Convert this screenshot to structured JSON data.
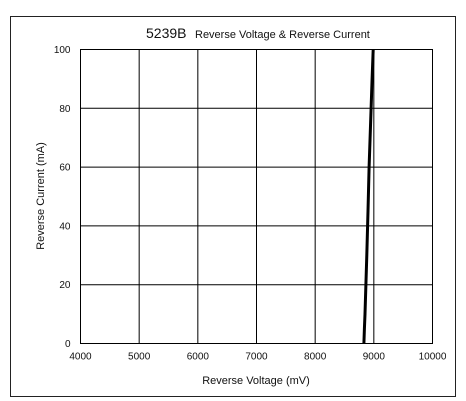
{
  "chart_data": {
    "type": "line",
    "title": "5239B",
    "subtitle": "Reverse Voltage & Reverse Current",
    "xlabel": "Reverse Voltage (mV)",
    "ylabel": "Reverse Current (mA)",
    "xlim": [
      4000,
      10000
    ],
    "ylim": [
      0,
      100
    ],
    "x_ticks": [
      "4000",
      "5000",
      "6000",
      "7000",
      "8000",
      "9000",
      "10000"
    ],
    "y_ticks": [
      "0",
      "20",
      "40",
      "60",
      "80",
      "100"
    ],
    "x_tick_values": [
      4000,
      5000,
      6000,
      7000,
      8000,
      9000,
      10000
    ],
    "y_tick_values": [
      0,
      20,
      40,
      60,
      80,
      100
    ],
    "grid": true,
    "series": [
      {
        "color": "#000000",
        "x": [
          8830,
          8840,
          8850,
          8865,
          8880,
          8900,
          8920,
          8945,
          8970,
          8990
        ],
        "y": [
          0,
          5,
          10,
          20,
          30,
          45,
          60,
          75,
          90,
          100
        ]
      }
    ]
  }
}
